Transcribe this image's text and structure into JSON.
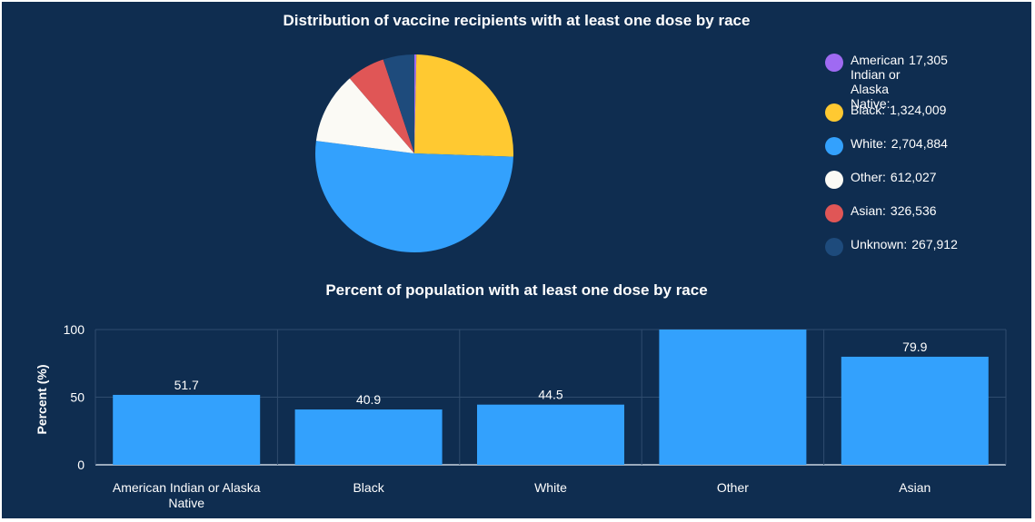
{
  "chart_data": [
    {
      "type": "pie",
      "title": "Distribution of vaccine recipients with at least one dose by race",
      "slices": [
        {
          "label": "American Indian or Alaska Native:",
          "value": 17305,
          "display": "17,305",
          "color": "#9f6af2"
        },
        {
          "label": "Black:",
          "value": 1324009,
          "display": "1,324,009",
          "color": "#ffc931"
        },
        {
          "label": "White:",
          "value": 2704884,
          "display": "2,704,884",
          "color": "#33a1fd"
        },
        {
          "label": "Other:",
          "value": 612027,
          "display": "612,027",
          "color": "#fbfaf5"
        },
        {
          "label": "Asian:",
          "value": 326536,
          "display": "326,536",
          "color": "#e05656"
        },
        {
          "label": "Unknown:",
          "value": 267912,
          "display": "267,912",
          "color": "#1e4b7c"
        }
      ],
      "legend_position": "right"
    },
    {
      "type": "bar",
      "title": "Percent of population with at least one dose by race",
      "categories": [
        "American Indian or Alaska Native",
        "Black",
        "White",
        "Other",
        "Asian"
      ],
      "values": [
        51.7,
        40.9,
        44.5,
        100,
        79.9
      ],
      "data_labels": [
        "51.7",
        "40.9",
        "44.5",
        "",
        "79.9"
      ],
      "xlabel": "",
      "ylabel": "Percent (%)",
      "ylim": [
        0,
        100
      ],
      "yticks": [
        0,
        50,
        100
      ],
      "grid": true,
      "bar_color": "#33a1fd"
    }
  ],
  "colors": {
    "background": "#0f2d50",
    "grid": "#2f4c6e",
    "text": "#ffffff"
  }
}
